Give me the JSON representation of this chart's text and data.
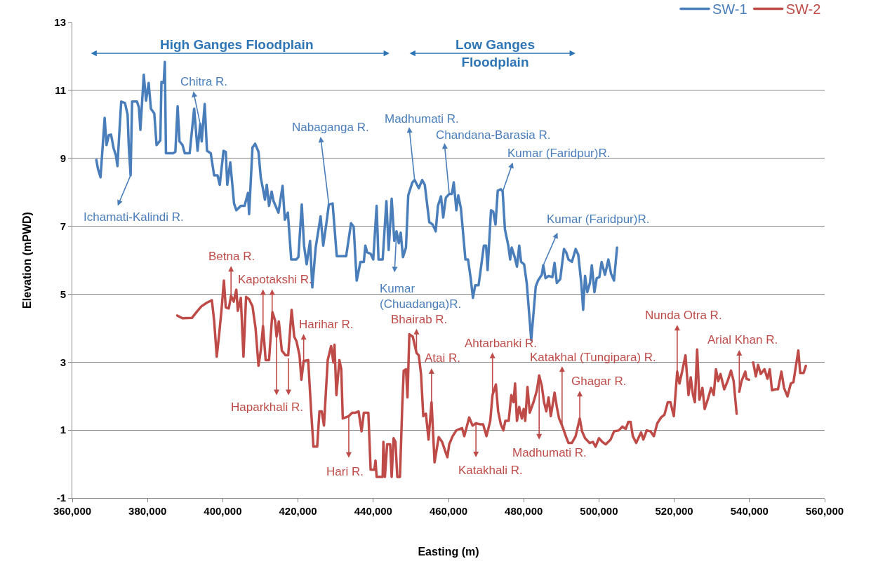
{
  "chart_data": {
    "type": "line",
    "xlabel": "Easting (m)",
    "ylabel": "Elevation (mPWD)",
    "xlim": [
      360000,
      560000
    ],
    "ylim": [
      -1,
      13
    ],
    "xticks": [
      {
        "value": 360000,
        "label": "360,000"
      },
      {
        "value": 380000,
        "label": "380,000"
      },
      {
        "value": 400000,
        "label": "400,000"
      },
      {
        "value": 420000,
        "label": "420,000"
      },
      {
        "value": 440000,
        "label": "440,000"
      },
      {
        "value": 460000,
        "label": "460,000"
      },
      {
        "value": 480000,
        "label": "480,000"
      },
      {
        "value": 500000,
        "label": "500,000"
      },
      {
        "value": 520000,
        "label": "520,000"
      },
      {
        "value": 540000,
        "label": "540,000"
      },
      {
        "value": 560000,
        "label": "560,000"
      }
    ],
    "yticks": [
      -1,
      1,
      3,
      5,
      7,
      9,
      11,
      13
    ],
    "grid": "y",
    "legend": "top right",
    "series": [
      {
        "name": "SW-1",
        "color": "#4a7ebb",
        "x": [
          366400,
          366800,
          367500,
          367800,
          368600,
          369100,
          369700,
          370300,
          371000,
          371600,
          372000,
          372500,
          373000,
          374000,
          374700,
          375000,
          375500,
          375900,
          377200,
          377700,
          378100,
          379000,
          379600,
          380300,
          380900,
          381800,
          382400,
          383400,
          383700,
          384300,
          384600,
          384900,
          386800,
          387400,
          388000,
          388500,
          389300,
          389900,
          391200,
          392400,
          393300,
          394000,
          394400,
          395200,
          395800,
          396800,
          397700,
          398600,
          399200,
          400200,
          400800,
          401200,
          402000,
          403000,
          403600,
          404800,
          405800,
          406700,
          407000,
          407900,
          408600,
          409500,
          410100,
          410700,
          411200,
          411700,
          412300,
          413000,
          413500,
          414800,
          415900,
          416500,
          417300,
          418200,
          419500,
          420100,
          421000,
          421600,
          422300,
          423200,
          423800,
          424700,
          426000,
          426700,
          427500,
          428200,
          429200,
          430300,
          432800,
          434100,
          434800,
          435600,
          436600,
          437500,
          437900,
          438400,
          439300,
          440000,
          440900,
          441400,
          442500,
          443500,
          444100,
          444900,
          445600,
          446200,
          446800,
          447300,
          447900,
          448700,
          449300,
          450400,
          451000,
          452100,
          453000,
          453700,
          454900,
          455800,
          456600,
          457200,
          458000,
          458600,
          459300,
          460200,
          460900,
          461400,
          462100,
          462600,
          463300,
          463900,
          464500,
          465200,
          465900,
          466500,
          467100,
          468000,
          468600,
          469400,
          470000,
          470400,
          471300,
          471900,
          472500,
          473100,
          473900,
          474400,
          475000,
          475900,
          476400,
          476800,
          477600,
          478200,
          478800,
          479300,
          480100,
          480800,
          482000,
          483200,
          483800,
          484800,
          485200,
          485800,
          486600,
          487600,
          488200,
          488800,
          489700,
          490700,
          491300,
          491900,
          492800,
          493800,
          494500,
          495300,
          495800,
          496300,
          496900,
          497600,
          498100,
          498800,
          499400,
          500100,
          500700,
          501600,
          502500,
          503200,
          504000,
          504800
        ],
        "values": [
          8.95,
          8.7,
          8.44,
          8.91,
          10.19,
          9.39,
          9.68,
          9.7,
          9.29,
          9.08,
          8.77,
          9.74,
          10.67,
          10.63,
          10.29,
          9.39,
          8.5,
          10.67,
          10.67,
          10.5,
          9.84,
          11.46,
          10.7,
          11.22,
          10.46,
          10.32,
          9.39,
          9.53,
          11.25,
          11.22,
          11.84,
          9.15,
          9.15,
          9.19,
          10.53,
          9.5,
          9.39,
          9.15,
          9.15,
          10.46,
          9.22,
          10.01,
          9.5,
          10.6,
          9.22,
          9.15,
          8.5,
          8.5,
          8.22,
          9.22,
          9.19,
          8.22,
          8.88,
          7.67,
          7.47,
          7.6,
          7.6,
          7.98,
          7.36,
          9.32,
          9.43,
          9.19,
          8.43,
          8.09,
          7.78,
          8.22,
          7.6,
          8.02,
          7.74,
          7.4,
          8.19,
          7.19,
          7.4,
          6.02,
          6.02,
          6.09,
          7.64,
          6.43,
          5.88,
          6.57,
          5.2,
          6.37,
          7.29,
          6.43,
          7.05,
          7.64,
          7.67,
          6.12,
          6.12,
          7.09,
          6.98,
          5.4,
          5.95,
          5.95,
          6.43,
          6.23,
          6.19,
          6.02,
          7.6,
          6.02,
          6.02,
          7.74,
          6.3,
          7.81,
          6.57,
          6.85,
          6.5,
          6.81,
          6.09,
          6.37,
          7.91,
          8.29,
          8.36,
          8.12,
          8.36,
          8.22,
          7.12,
          7.05,
          6.85,
          7.6,
          7.88,
          7.26,
          7.84,
          7.95,
          7.95,
          8.29,
          7.47,
          7.91,
          7.53,
          6.78,
          6.02,
          6.02,
          5.47,
          4.89,
          5.26,
          5.26,
          5.75,
          6.43,
          6.43,
          5.71,
          7.47,
          7.43,
          7.05,
          8.05,
          8.09,
          8.02,
          6.91,
          6.43,
          6.02,
          6.37,
          6.09,
          5.81,
          6.43,
          5.95,
          5.88,
          5.33,
          3.65,
          5.23,
          5.4,
          5.57,
          5.85,
          5.47,
          5.54,
          5.5,
          5.92,
          5.33,
          5.44,
          6.33,
          6.23,
          6.02,
          5.95,
          6.33,
          6.16,
          5.33,
          4.54,
          5.54,
          5.06,
          5.33,
          5.85,
          5.06,
          5.47,
          5.5,
          5.95,
          5.57,
          6.02,
          5.61,
          5.4,
          6.37
        ]
      },
      {
        "name": "SW-2",
        "color": "#be4b48",
        "x": [
          387900,
          389300,
          391800,
          393000,
          394300,
          395800,
          397100,
          397700,
          398400,
          399100,
          399700,
          400300,
          400800,
          401600,
          402200,
          402900,
          403600,
          404000,
          404800,
          405500,
          406200,
          407000,
          407900,
          408700,
          409500,
          410100,
          410700,
          411400,
          412300,
          413200,
          413900,
          414300,
          414900,
          415700,
          416700,
          417400,
          418300,
          419000,
          419600,
          420400,
          420900,
          421500,
          422700,
          423500,
          424100,
          425100,
          425700,
          426300,
          426900,
          427900,
          428800,
          429400,
          429700,
          430200,
          431000,
          431500,
          431900,
          433500,
          434400,
          435300,
          436100,
          436900,
          437500,
          438700,
          439300,
          440300,
          440600,
          440900,
          442500,
          442700,
          443100,
          443700,
          444500,
          444900,
          445400,
          445900,
          446400,
          447100,
          447700,
          448100,
          448700,
          449100,
          449600,
          450500,
          451500,
          452100,
          452700,
          453300,
          454000,
          454700,
          455500,
          456300,
          457400,
          458300,
          459700,
          460200,
          461100,
          462100,
          463600,
          464200,
          465500,
          466400,
          467300,
          468300,
          469200,
          470100,
          471100,
          471700,
          472600,
          473200,
          473900,
          474600,
          475100,
          476000,
          476700,
          477300,
          477700,
          478200,
          478800,
          479500,
          480000,
          480400,
          481000,
          481600,
          482600,
          483500,
          484100,
          484800,
          485400,
          486000,
          486600,
          487200,
          488200,
          488800,
          489400,
          490200,
          491300,
          491900,
          492800,
          493800,
          494900,
          495500,
          496300,
          497500,
          498400,
          499100,
          500000,
          500900,
          501800,
          503100,
          504000,
          505300,
          506200,
          507100,
          507800,
          508400,
          509000,
          509900,
          510600,
          511200,
          511800,
          512700,
          513700,
          514600,
          515500,
          516500,
          517400,
          518300,
          519000,
          519900,
          520800,
          521400,
          522100,
          523000,
          523800,
          524400,
          525000,
          525500,
          526100,
          526700,
          527500,
          528100,
          528900,
          529800,
          530500,
          531100,
          531700,
          532300,
          533300,
          534200,
          535100,
          535800,
          536600,
          536900,
          537300,
          537900,
          538900,
          539200,
          539900,
          540400,
          541000,
          541700,
          542300,
          543000,
          544000,
          544800,
          545400,
          546000,
          546900,
          547600,
          548500,
          549200,
          550100,
          551000,
          551700,
          552400,
          553000,
          553500,
          554400,
          555000
        ],
        "values": [
          4.37,
          4.29,
          4.3,
          4.47,
          4.64,
          4.75,
          4.82,
          4.23,
          3.16,
          3.88,
          4.58,
          5.4,
          4.61,
          4.58,
          4.95,
          4.78,
          5.13,
          4.51,
          4.89,
          3.16,
          4.92,
          4.85,
          4.64,
          4.02,
          2.89,
          3.34,
          4.06,
          3.06,
          3.06,
          4.47,
          4.23,
          3.75,
          4.2,
          3.34,
          3.2,
          3.2,
          4.54,
          3.75,
          3.61,
          3.2,
          2.48,
          3.03,
          3.06,
          1.55,
          0.51,
          0.51,
          1.55,
          1.55,
          1.13,
          3.06,
          3.47,
          2.99,
          3.51,
          2.03,
          3.06,
          2.79,
          1.34,
          1.41,
          1.51,
          1.51,
          1.55,
          0.96,
          1.51,
          1.51,
          -0.17,
          -0.17,
          0.1,
          -0.38,
          -0.38,
          0.65,
          -0.38,
          0.58,
          0.58,
          -0.38,
          0.76,
          0.65,
          -0.38,
          -0.38,
          1.68,
          2.75,
          2.79,
          1.96,
          3.82,
          3.75,
          3.27,
          3.2,
          2.65,
          1.41,
          1.48,
          0.72,
          1.82,
          0.05,
          0.79,
          0.65,
          0.2,
          0.58,
          0.82,
          0.99,
          1.06,
          0.82,
          1.37,
          1.13,
          1.2,
          1.17,
          1.17,
          0.82,
          1.27,
          2.03,
          2.34,
          1.55,
          1.17,
          0.99,
          1.27,
          1.27,
          2.03,
          1.82,
          2.37,
          1.27,
          1.68,
          1.34,
          1.62,
          1.27,
          2.27,
          1.51,
          1.82,
          2.17,
          2.61,
          2.3,
          1.82,
          1.55,
          1.96,
          1.41,
          2.1,
          1.68,
          1.34,
          1.13,
          0.79,
          0.62,
          0.62,
          0.82,
          1.34,
          0.96,
          0.76,
          0.62,
          0.65,
          0.51,
          0.76,
          0.65,
          0.58,
          0.72,
          0.96,
          0.99,
          1.1,
          1.03,
          1.24,
          1.24,
          0.82,
          0.62,
          0.79,
          0.93,
          0.72,
          0.99,
          0.96,
          0.82,
          1.2,
          1.37,
          1.45,
          1.82,
          1.82,
          1.41,
          2.72,
          2.37,
          2.72,
          3.2,
          2.03,
          2.55,
          2.03,
          1.82,
          3.37,
          1.89,
          2.24,
          1.62,
          1.89,
          2.24,
          2.03,
          2.79,
          2.44,
          2.65,
          2.2,
          2.44,
          2.75,
          2.44,
          1.48,
          null,
          2.13,
          2.44,
          2.72,
          2.51,
          2.48,
          null,
          2.99,
          2.58,
          2.92,
          2.65,
          2.79,
          2.51,
          2.79,
          2.17,
          2.2,
          2.2,
          2.72,
          2.24,
          1.99,
          2.37,
          2.41,
          2.92,
          3.34,
          2.68,
          2.68,
          2.89
        ]
      }
    ],
    "annotations": [
      "High Ganges Floodplain",
      "Low Ganges Floodplain",
      {
        "text": "Chitra R.",
        "x": 394000,
        "y": 10.01
      },
      {
        "text": "Ichamati-Kalindi R.",
        "x": 375500,
        "y": 8.5
      },
      {
        "text": "Nabaganga R.",
        "x": 428200,
        "y": 7.64
      },
      {
        "text": "Madhumati R.",
        "x": 451000,
        "y": 8.36
      },
      {
        "text": "Chandana-Barasia R.",
        "x": 460200,
        "y": 7.95
      },
      {
        "text": "Kumar (Faridpur)R.",
        "x": 474400,
        "y": 8.02
      },
      {
        "text": "Kumar (Chuadanga)R.",
        "x": 446200,
        "y": 6.85
      },
      {
        "text": "Kumar (Faridpur)R.",
        "x": 485200,
        "y": 5.85
      },
      {
        "text": "Betna R.",
        "x": 402200,
        "y": 4.95
      },
      {
        "text": "Kapotakshi R.",
        "x": 410700,
        "y": 4.06
      },
      {
        "text": "Harihar R.",
        "x": 421500,
        "y": 3.03
      },
      {
        "text": "Haparkhali R.",
        "x": 414300,
        "y": 3.75
      },
      {
        "text": "Hari R.",
        "x": 433500,
        "y": 1.41
      },
      {
        "text": "Bhairab R.",
        "x": 451500,
        "y": 3.27
      },
      {
        "text": "Atai R.",
        "x": 455500,
        "y": 1.82
      },
      {
        "text": "Ahtarbanki R.",
        "x": 471700,
        "y": 2.03
      },
      {
        "text": "Katakhali R.",
        "x": 467300,
        "y": 1.2
      },
      {
        "text": "Madhumati R.",
        "x": 484100,
        "y": 2.61
      },
      {
        "text": "Katakhal (Tungipara) R.",
        "x": 490200,
        "y": 1.13
      },
      {
        "text": "Ghagar R.",
        "x": 494900,
        "y": 1.34
      },
      {
        "text": "Nunda Otra R.",
        "x": 520800,
        "y": 2.72
      },
      {
        "text": "Arial Khan R.",
        "x": 537300,
        "y": 2.13
      }
    ]
  }
}
